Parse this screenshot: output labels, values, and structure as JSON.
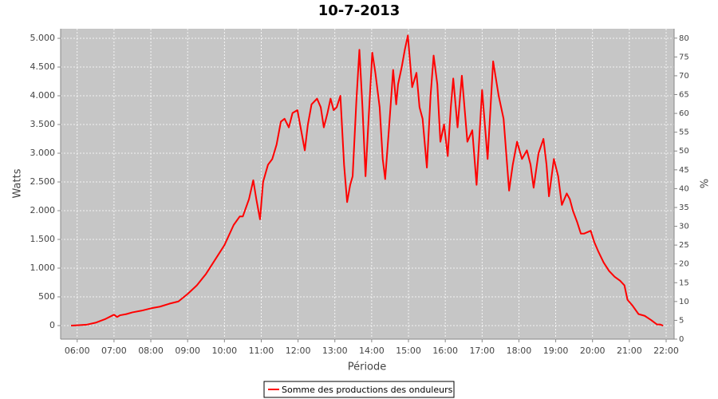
{
  "chart_data": {
    "type": "line",
    "title": "10-7-2013",
    "x_label": "Période",
    "y_label": "Watts",
    "y2_label": "%",
    "x": [
      "05:50",
      "06:00",
      "06:15",
      "06:30",
      "06:45",
      "07:00",
      "07:05",
      "07:10",
      "07:20",
      "07:30",
      "07:45",
      "08:00",
      "08:15",
      "08:30",
      "08:45",
      "09:00",
      "09:15",
      "09:30",
      "09:45",
      "10:00",
      "10:15",
      "10:25",
      "10:30",
      "10:40",
      "10:47",
      "10:52",
      "10:58",
      "11:03",
      "11:11",
      "11:18",
      "11:25",
      "11:32",
      "11:38",
      "11:45",
      "11:51",
      "11:59",
      "12:05",
      "12:11",
      "12:16",
      "12:22",
      "12:31",
      "12:37",
      "12:42",
      "12:48",
      "12:53",
      "12:58",
      "13:03",
      "13:09",
      "13:15",
      "13:20",
      "13:25",
      "13:29",
      "13:35",
      "13:40",
      "13:45",
      "13:50",
      "13:55",
      "14:01",
      "14:06",
      "14:13",
      "14:18",
      "14:22",
      "14:28",
      "14:35",
      "14:40",
      "14:43",
      "14:49",
      "14:54",
      "14:59",
      "15:06",
      "15:13",
      "15:18",
      "15:23",
      "15:30",
      "15:36",
      "15:41",
      "15:47",
      "15:52",
      "15:58",
      "16:04",
      "16:09",
      "16:13",
      "16:20",
      "16:27",
      "16:36",
      "16:44",
      "16:51",
      "17:00",
      "17:09",
      "17:18",
      "17:27",
      "17:35",
      "17:44",
      "17:50",
      "17:57",
      "18:05",
      "18:13",
      "18:19",
      "18:24",
      "18:32",
      "18:40",
      "18:45",
      "18:49",
      "18:57",
      "19:04",
      "19:10",
      "19:18",
      "19:23",
      "19:28",
      "19:35",
      "19:41",
      "19:46",
      "19:57",
      "20:03",
      "20:09",
      "20:18",
      "20:27",
      "20:36",
      "20:45",
      "20:52",
      "20:57",
      "21:05",
      "21:15",
      "21:25",
      "21:35",
      "21:45",
      "21:50",
      "21:55"
    ],
    "series": [
      {
        "name": "Somme des productions des onduleurs",
        "color": "#ff0000",
        "values": [
          0,
          5,
          15,
          50,
          110,
          190,
          150,
          180,
          200,
          230,
          260,
          300,
          330,
          380,
          420,
          550,
          700,
          900,
          1150,
          1400,
          1750,
          1900,
          1900,
          2200,
          2530,
          2200,
          1850,
          2500,
          2800,
          2900,
          3150,
          3550,
          3600,
          3450,
          3700,
          3750,
          3400,
          3050,
          3500,
          3850,
          3950,
          3800,
          3450,
          3700,
          3950,
          3750,
          3800,
          4000,
          2800,
          2150,
          2450,
          2600,
          3900,
          4800,
          3800,
          2600,
          3600,
          4750,
          4400,
          3800,
          2900,
          2550,
          3400,
          4450,
          3850,
          4200,
          4500,
          4800,
          5050,
          4150,
          4400,
          3800,
          3600,
          2750,
          4000,
          4700,
          4200,
          3200,
          3500,
          2950,
          3800,
          4300,
          3450,
          4350,
          3200,
          3400,
          2450,
          4100,
          2900,
          4600,
          4000,
          3600,
          2350,
          2800,
          3200,
          2900,
          3050,
          2800,
          2400,
          3000,
          3250,
          2800,
          2250,
          2900,
          2600,
          2100,
          2300,
          2200,
          2000,
          1800,
          1600,
          1600,
          1650,
          1450,
          1300,
          1100,
          950,
          850,
          780,
          700,
          450,
          350,
          200,
          170,
          100,
          20,
          20,
          0
        ]
      }
    ],
    "xlim": [
      "05:33",
      "22:13"
    ],
    "xticks": [
      "06:00",
      "07:00",
      "08:00",
      "09:00",
      "10:00",
      "11:00",
      "12:00",
      "13:00",
      "14:00",
      "15:00",
      "16:00",
      "17:00",
      "18:00",
      "19:00",
      "20:00",
      "21:00",
      "22:00"
    ],
    "ylim": [
      -236,
      5167
    ],
    "yticks": [
      0,
      500,
      {
        "value": 1000,
        "label": "1.000"
      },
      {
        "value": 1500,
        "label": "1.500"
      },
      {
        "value": 2000,
        "label": "2.000"
      },
      {
        "value": 2500,
        "label": "2.500"
      },
      {
        "value": 3000,
        "label": "3.000"
      },
      {
        "value": 3500,
        "label": "3.500"
      },
      {
        "value": 4000,
        "label": "4.000"
      },
      {
        "value": 4500,
        "label": "4.500"
      },
      {
        "value": 5000,
        "label": "5.000"
      }
    ],
    "y2lim": [
      0,
      82.5
    ],
    "y2ticks": [
      0,
      5,
      10,
      15,
      20,
      25,
      30,
      35,
      40,
      45,
      50,
      55,
      60,
      65,
      70,
      75,
      80
    ],
    "grid": true
  }
}
